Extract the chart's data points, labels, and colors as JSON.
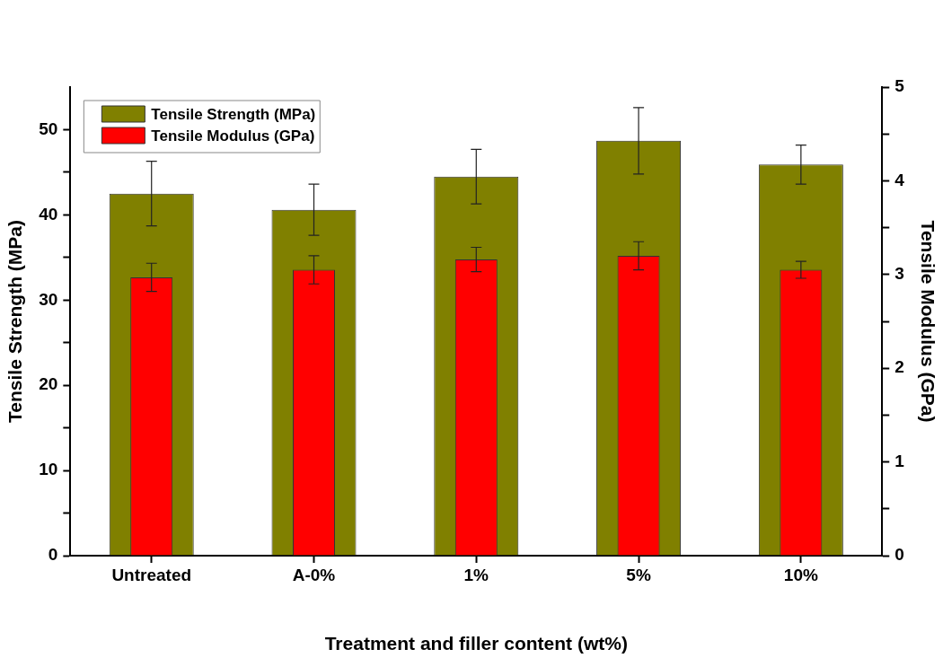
{
  "chart_data": {
    "type": "bar",
    "xlabel": "Treatment and filler content (wt%)",
    "ylabel": "Tensile Strength (MPa)",
    "y2label": "Tensile Modulus (GPa)",
    "categories": [
      "Untreated",
      "A-0%",
      "1%",
      "5%",
      "10%"
    ],
    "series": [
      {
        "name": "Tensile Strength (MPa)",
        "color": "#808000",
        "values": [
          42.5,
          40.6,
          44.5,
          48.7,
          45.9
        ],
        "errors": [
          3.8,
          3.0,
          3.2,
          3.9,
          2.3
        ]
      },
      {
        "name": "Tensile Modulus (GPa)",
        "color": "#ff0000",
        "axis": "y2",
        "values": [
          2.97,
          3.05,
          3.16,
          3.2,
          3.05
        ],
        "errors": [
          0.15,
          0.15,
          0.13,
          0.15,
          0.09
        ]
      }
    ],
    "ylim": [
      0,
      55
    ],
    "yticks": [
      0,
      {
        "value": 5,
        "label": null
      },
      10,
      {
        "value": 15,
        "label": null
      },
      20,
      {
        "value": 25,
        "label": null
      },
      30,
      {
        "value": 35,
        "label": null
      },
      40,
      {
        "value": 45,
        "label": null
      },
      50
    ],
    "y2lim": [
      0,
      5
    ],
    "y2ticks": [
      0,
      {
        "value": 0.5,
        "label": null
      },
      1,
      {
        "value": 1.5,
        "label": null
      },
      2,
      {
        "value": 2.5,
        "label": null
      },
      3,
      {
        "value": 3.5,
        "label": null
      },
      4,
      {
        "value": 4.5,
        "label": null
      },
      5
    ],
    "legend": "top left",
    "grid": false
  }
}
